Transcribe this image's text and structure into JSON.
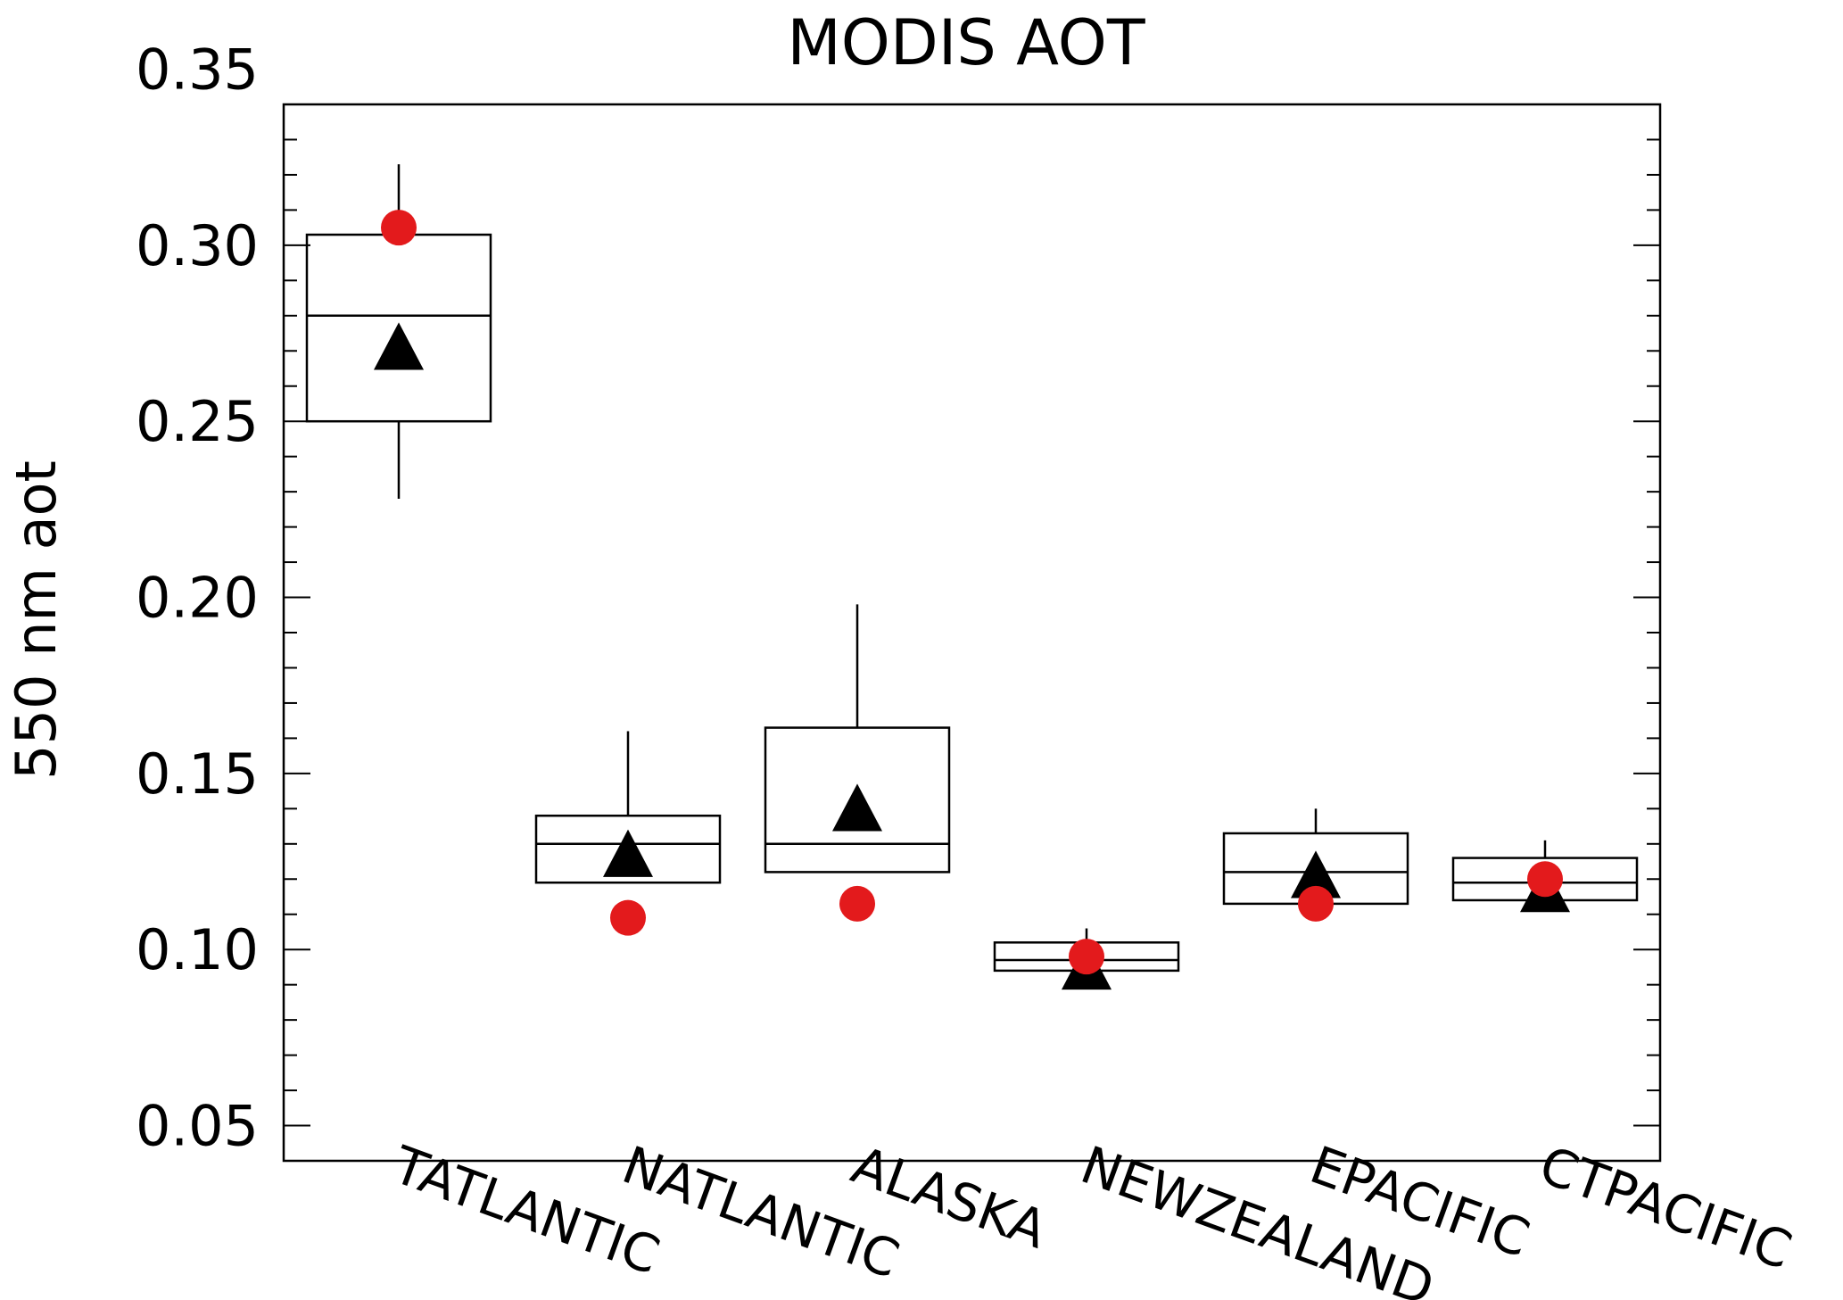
{
  "chart_data": {
    "type": "box",
    "title": "MODIS AOT",
    "xlabel": "",
    "ylabel": "550 nm aot",
    "ylim": [
      0.04,
      0.34
    ],
    "yticks": [
      {
        "value": 0.05,
        "label": "0.05"
      },
      {
        "value": 0.1,
        "label": "0.10"
      },
      {
        "value": 0.15,
        "label": "0.15"
      },
      {
        "value": 0.2,
        "label": "0.20"
      },
      {
        "value": 0.25,
        "label": "0.25"
      },
      {
        "value": 0.3,
        "label": "0.30"
      },
      {
        "value": 0.35,
        "label": "0.35"
      }
    ],
    "yminor_step": 0.01,
    "grid": false,
    "legend": "none",
    "colors": {
      "box": "#000000",
      "median_triangle": "#000000",
      "dot": "#e31a1c"
    },
    "categories": [
      "TATLANTIC",
      "NATLANTIC",
      "ALASKA",
      "NEWZEALAND",
      "EPACIFIC",
      "CTPACIFIC"
    ],
    "boxes": [
      {
        "category": "TATLANTIC",
        "whisker_low": 0.228,
        "q1": 0.25,
        "median": 0.28,
        "q3": 0.303,
        "whisker_high": 0.323,
        "triangle": 0.271,
        "dot": 0.305
      },
      {
        "category": "NATLANTIC",
        "whisker_low": 0.119,
        "q1": 0.119,
        "median": 0.13,
        "q3": 0.138,
        "whisker_high": 0.162,
        "triangle": 0.127,
        "dot": 0.109
      },
      {
        "category": "ALASKA",
        "whisker_low": 0.122,
        "q1": 0.122,
        "median": 0.13,
        "q3": 0.163,
        "whisker_high": 0.198,
        "triangle": 0.14,
        "dot": 0.113
      },
      {
        "category": "NEWZEALAND",
        "whisker_low": 0.09,
        "q1": 0.094,
        "median": 0.097,
        "q3": 0.102,
        "whisker_high": 0.106,
        "triangle": 0.095,
        "dot": 0.098
      },
      {
        "category": "EPACIFIC",
        "whisker_low": 0.113,
        "q1": 0.113,
        "median": 0.122,
        "q3": 0.133,
        "whisker_high": 0.14,
        "triangle": 0.121,
        "dot": 0.113
      },
      {
        "category": "CTPACIFIC",
        "whisker_low": 0.111,
        "q1": 0.114,
        "median": 0.119,
        "q3": 0.126,
        "whisker_high": 0.131,
        "triangle": 0.117,
        "dot": 0.12
      }
    ]
  }
}
